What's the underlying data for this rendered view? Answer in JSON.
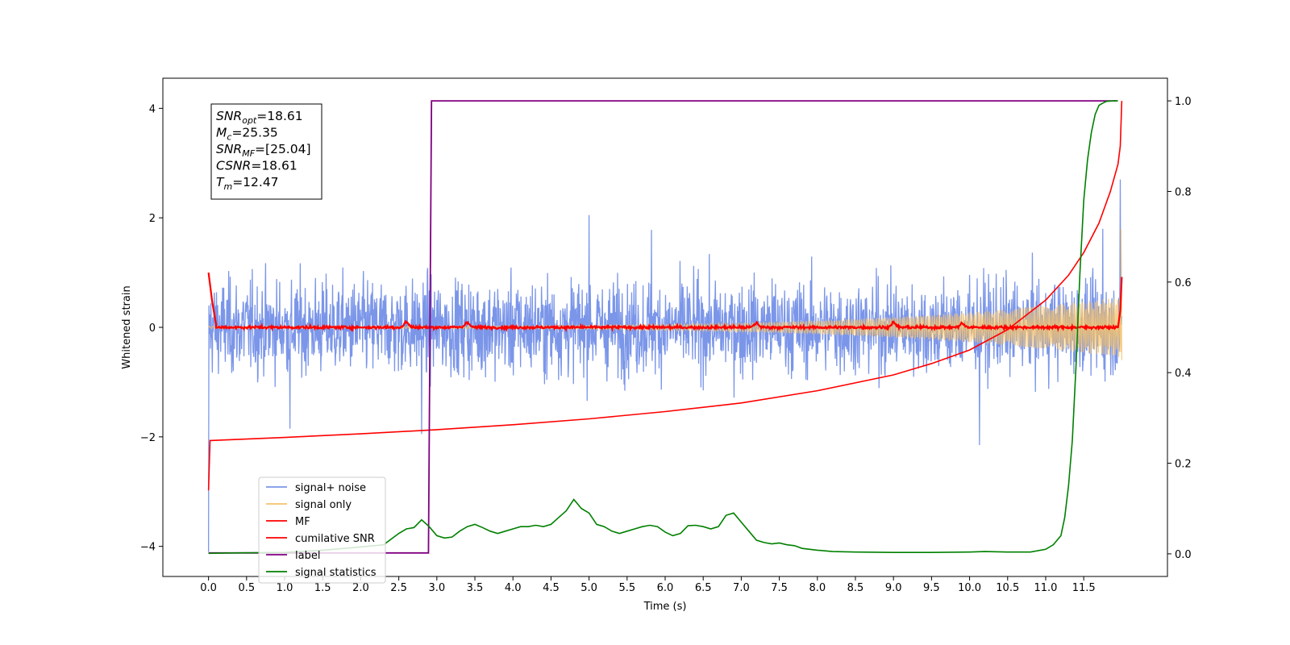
{
  "chart_data": {
    "type": "line",
    "xlabel": "Time (s)",
    "ylabel": "Whitened strain",
    "xlim": [
      -0.6,
      12.6
    ],
    "ylim": [
      -4.55,
      4.55
    ],
    "y2lim": [
      -0.05,
      1.05
    ],
    "xticks": [
      "0.0",
      "0.5",
      "1.0",
      "1.5",
      "2.0",
      "2.5",
      "3.0",
      "3.5",
      "4.0",
      "4.5",
      "5.0",
      "5.5",
      "6.0",
      "6.5",
      "7.0",
      "7.5",
      "8.0",
      "8.5",
      "9.0",
      "9.5",
      "10.0",
      "10.5",
      "11.0",
      "11.5"
    ],
    "yticks": [
      "4",
      "2",
      "0",
      "−2",
      "−4"
    ],
    "y2ticks": [
      "1.0",
      "0.8",
      "0.6",
      "0.4",
      "0.2",
      "0.0"
    ],
    "grid": false,
    "legend_position": "lower-left",
    "annotation": [
      {
        "sym": "SNR",
        "sub": "opt",
        "val": "=18.61"
      },
      {
        "sym": "M",
        "sub": "c",
        "val": "=25.35"
      },
      {
        "sym": "SNR",
        "sub": "MF",
        "val": "=[25.04]"
      },
      {
        "sym": "CSNR",
        "sub": "",
        "val": "=18.61"
      },
      {
        "sym": "T",
        "sub": "m",
        "val": "=12.47"
      }
    ],
    "series": [
      {
        "name": "signal+ noise",
        "color": "#7b96e9",
        "axis": "left",
        "noise_amplitude": 0.6,
        "sample_count": 2400,
        "x_range": [
          0.0,
          12.0
        ],
        "extremes": [
          {
            "x": 0.0,
            "y": -4.1
          },
          {
            "x": 1.07,
            "y": -1.85
          },
          {
            "x": 2.8,
            "y": -1.95
          },
          {
            "x": 5.0,
            "y": 2.05
          },
          {
            "x": 5.82,
            "y": 1.78
          },
          {
            "x": 10.13,
            "y": -2.15
          },
          {
            "x": 11.75,
            "y": 1.8
          },
          {
            "x": 11.98,
            "y": 2.7
          }
        ]
      },
      {
        "name": "signal only",
        "color": "#f5c26b",
        "axis": "left",
        "start_amplitude": 0.02,
        "end_amplitude": 0.55,
        "x_range": [
          0.0,
          12.0
        ]
      },
      {
        "name": "MF",
        "color": "#ff0000",
        "axis": "left",
        "x_range": [
          0.0,
          12.0
        ],
        "start_value": 1.0,
        "end_value": 0.92,
        "bumps": [
          {
            "x": 2.6,
            "y": 0.1
          },
          {
            "x": 3.4,
            "y": 0.1
          },
          {
            "x": 7.2,
            "y": 0.08
          },
          {
            "x": 9.0,
            "y": 0.09
          },
          {
            "x": 9.9,
            "y": 0.07
          }
        ]
      },
      {
        "name": "cumilative SNR",
        "color": "#ff0000",
        "axis": "right",
        "x": [
          0.0,
          0.02,
          1.0,
          2.0,
          3.0,
          4.0,
          5.0,
          6.0,
          7.0,
          8.0,
          9.0,
          9.5,
          10.0,
          10.5,
          11.0,
          11.3,
          11.5,
          11.7,
          11.85,
          11.95,
          11.98,
          12.0
        ],
        "y": [
          0.14,
          0.25,
          0.257,
          0.265,
          0.274,
          0.285,
          0.298,
          0.314,
          0.333,
          0.36,
          0.395,
          0.42,
          0.45,
          0.495,
          0.56,
          0.615,
          0.665,
          0.73,
          0.8,
          0.86,
          0.9,
          1.0
        ]
      },
      {
        "name": "label",
        "color": "#800080",
        "axis": "right",
        "x": [
          0.0,
          2.89,
          2.93,
          11.93
        ],
        "y": [
          0.002,
          0.002,
          1.0,
          1.0
        ]
      },
      {
        "name": "signal statistics",
        "color": "#008000",
        "axis": "right",
        "x": [
          0.0,
          0.3,
          1.0,
          1.5,
          2.0,
          2.3,
          2.5,
          2.6,
          2.7,
          2.8,
          2.9,
          3.0,
          3.1,
          3.2,
          3.3,
          3.4,
          3.5,
          3.6,
          3.7,
          3.8,
          3.9,
          4.0,
          4.1,
          4.2,
          4.3,
          4.4,
          4.5,
          4.6,
          4.7,
          4.8,
          4.9,
          5.0,
          5.1,
          5.2,
          5.3,
          5.4,
          5.5,
          5.6,
          5.7,
          5.8,
          5.9,
          6.0,
          6.1,
          6.2,
          6.3,
          6.4,
          6.5,
          6.6,
          6.7,
          6.8,
          6.9,
          7.0,
          7.1,
          7.2,
          7.3,
          7.4,
          7.5,
          7.6,
          7.7,
          7.8,
          8.0,
          8.2,
          8.5,
          9.0,
          9.5,
          10.0,
          10.2,
          10.5,
          10.8,
          11.0,
          11.1,
          11.2,
          11.25,
          11.3,
          11.35,
          11.4,
          11.45,
          11.5,
          11.55,
          11.6,
          11.65,
          11.7,
          11.75,
          11.8,
          11.9,
          11.95
        ],
        "y": [
          0.001,
          0.002,
          0.003,
          0.008,
          0.015,
          0.02,
          0.045,
          0.055,
          0.058,
          0.075,
          0.06,
          0.04,
          0.035,
          0.037,
          0.05,
          0.06,
          0.065,
          0.058,
          0.05,
          0.045,
          0.05,
          0.055,
          0.06,
          0.06,
          0.063,
          0.06,
          0.065,
          0.08,
          0.095,
          0.12,
          0.1,
          0.09,
          0.065,
          0.06,
          0.05,
          0.045,
          0.05,
          0.055,
          0.06,
          0.063,
          0.06,
          0.048,
          0.04,
          0.045,
          0.062,
          0.063,
          0.06,
          0.055,
          0.06,
          0.085,
          0.09,
          0.07,
          0.05,
          0.03,
          0.025,
          0.022,
          0.024,
          0.02,
          0.018,
          0.012,
          0.008,
          0.005,
          0.004,
          0.003,
          0.003,
          0.004,
          0.005,
          0.004,
          0.004,
          0.01,
          0.02,
          0.04,
          0.08,
          0.15,
          0.25,
          0.42,
          0.62,
          0.78,
          0.87,
          0.93,
          0.97,
          0.99,
          0.995,
          0.999,
          1.0,
          1.0
        ]
      }
    ]
  }
}
